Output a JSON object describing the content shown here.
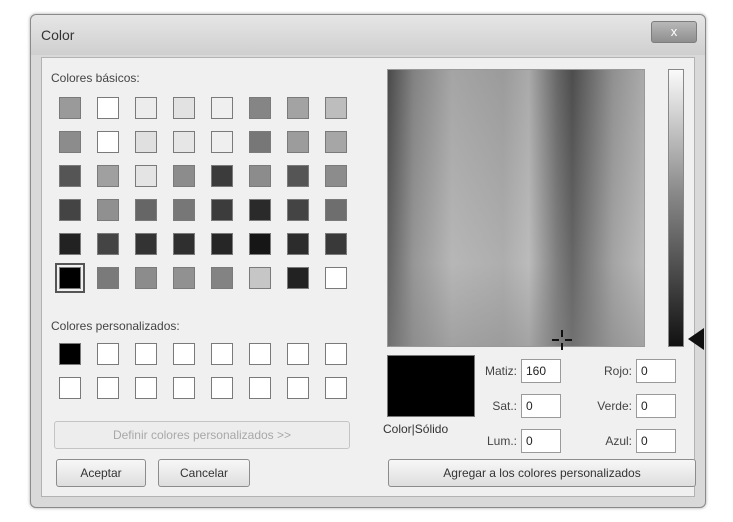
{
  "window": {
    "title": "Color",
    "close_label": "x"
  },
  "basic": {
    "label": "Colores básicos:",
    "colors": [
      "#9a9a9a",
      "#ffffff",
      "#ececec",
      "#e2e2e2",
      "#efefef",
      "#858585",
      "#a3a3a3",
      "#bdbdbd",
      "#8c8c8c",
      "#ffffff",
      "#e0e0e0",
      "#e6e6e6",
      "#efefef",
      "#777777",
      "#9c9c9c",
      "#a6a6a6",
      "#555555",
      "#a0a0a0",
      "#e4e4e4",
      "#8c8c8c",
      "#3b3b3b",
      "#8c8c8c",
      "#555555",
      "#8c8c8c",
      "#444444",
      "#909090",
      "#666666",
      "#777777",
      "#3c3c3c",
      "#2a2a2a",
      "#444444",
      "#6e6e6e",
      "#222222",
      "#444444",
      "#333333",
      "#2f2f2f",
      "#262626",
      "#161616",
      "#2c2c2c",
      "#393939",
      "#000000",
      "#7a7a7a",
      "#8c8c8c",
      "#919191",
      "#838383",
      "#c6c6c6",
      "#222222",
      "#ffffff"
    ],
    "selected_index": 40
  },
  "custom": {
    "label": "Colores personalizados:",
    "colors": [
      "#000000",
      "#ffffff",
      "#ffffff",
      "#ffffff",
      "#ffffff",
      "#ffffff",
      "#ffffff",
      "#ffffff",
      "#ffffff",
      "#ffffff",
      "#ffffff",
      "#ffffff",
      "#ffffff",
      "#ffffff",
      "#ffffff",
      "#ffffff"
    ]
  },
  "buttons": {
    "define": "Definir colores personalizados >>",
    "ok": "Aceptar",
    "cancel": "Cancelar",
    "add": "Agregar a los colores personalizados"
  },
  "solid_label": "Color|Sólido",
  "solid_color": "#000000",
  "fields": {
    "hue": {
      "label": "Matiz:",
      "value": "160"
    },
    "sat": {
      "label": "Sat.:",
      "value": "0"
    },
    "lum": {
      "label": "Lum.:",
      "value": "0"
    },
    "red": {
      "label": "Rojo:",
      "value": "0"
    },
    "green": {
      "label": "Verde:",
      "value": "0"
    },
    "blue": {
      "label": "Azul:",
      "value": "0"
    }
  }
}
